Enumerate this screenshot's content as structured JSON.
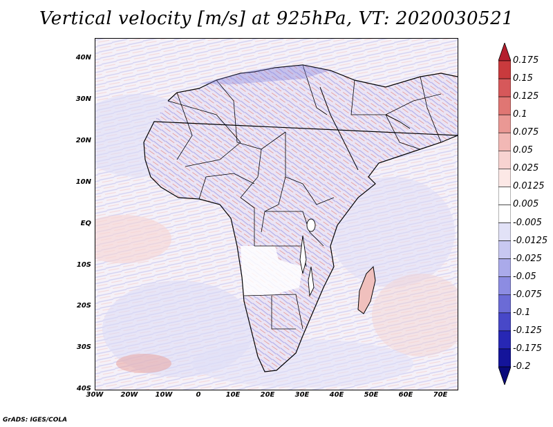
{
  "title": "Vertical velocity [m/s] at 925hPa, VT: 2020030521",
  "credit": "GrADS: IGES/COLA",
  "map": {
    "lat_labels": [
      "40N",
      "30N",
      "20N",
      "10N",
      "EQ",
      "10S",
      "20S",
      "30S",
      "40S"
    ],
    "lon_labels": [
      "30W",
      "20W",
      "10W",
      "0",
      "10E",
      "20E",
      "30E",
      "40E",
      "50E",
      "60E",
      "70E"
    ],
    "lat_range": [
      -40,
      45
    ],
    "lon_range": [
      -30,
      75
    ]
  },
  "colorbar": {
    "labels": [
      "0.175",
      "0.15",
      "0.125",
      "0.1",
      "0.075",
      "0.05",
      "0.025",
      "0.0125",
      "0.005",
      "-0.005",
      "-0.0125",
      "-0.025",
      "-0.05",
      "-0.075",
      "-0.1",
      "-0.125",
      "-0.175",
      "-0.2"
    ],
    "colors": [
      "#b41f2d",
      "#c93a3d",
      "#d6585a",
      "#e07673",
      "#ea9894",
      "#f2b8b5",
      "#f8d3d1",
      "#fce8e6",
      "#ffffff",
      "#ffffff",
      "#e2e2f7",
      "#c8c8f1",
      "#aaaaea",
      "#8c8ce2",
      "#6b6bd6",
      "#4848c8",
      "#2727b4",
      "#14149a",
      "#0a0a7a"
    ]
  }
}
